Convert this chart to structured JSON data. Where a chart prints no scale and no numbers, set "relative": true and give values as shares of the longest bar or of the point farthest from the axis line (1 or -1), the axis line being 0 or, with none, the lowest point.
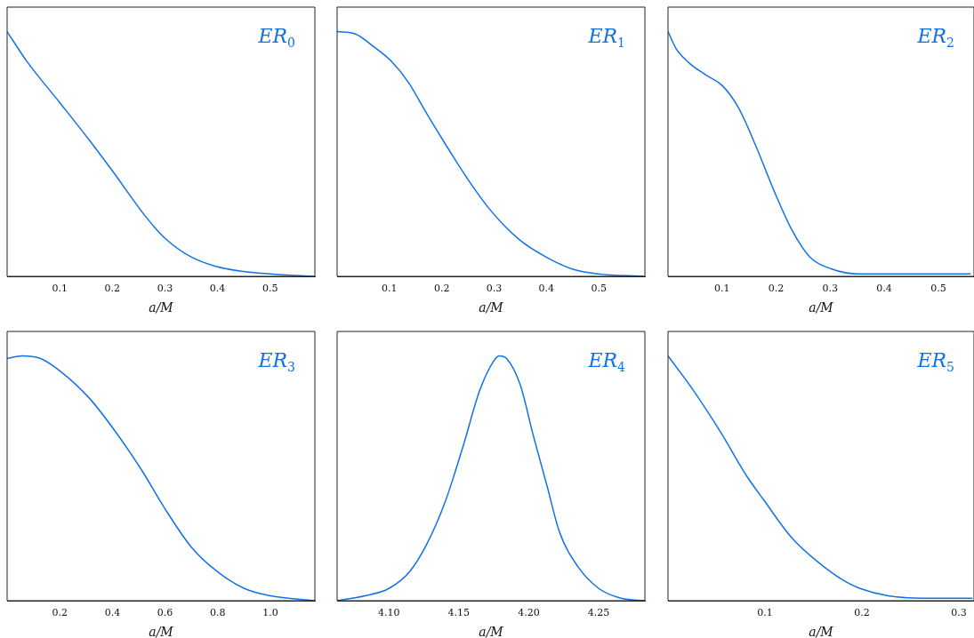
{
  "chart_data": [
    {
      "type": "line",
      "title": "ER$_{0}$",
      "xlabel": "a/M",
      "color": "#1172e6",
      "relative": true,
      "xlim": [
        0,
        0.585
      ],
      "xticks": [
        0.1,
        0.2,
        0.3,
        0.4,
        0.5
      ],
      "x": [
        0,
        0.037,
        0.1,
        0.155,
        0.197,
        0.265,
        0.298,
        0.349,
        0.398,
        0.45,
        0.5,
        0.584
      ],
      "values": [
        1,
        0.88,
        0.71,
        0.56,
        0.44,
        0.24,
        0.16,
        0.08,
        0.04,
        0.02,
        0.01,
        0
      ]
    },
    {
      "type": "line",
      "title": "ER$_{1}$",
      "xlabel": "a/M",
      "color": "#1172e6",
      "relative": true,
      "xlim": [
        0,
        0.588
      ],
      "xticks": [
        0.1,
        0.2,
        0.3,
        0.4,
        0.5
      ],
      "x": [
        0,
        0.035,
        0.069,
        0.103,
        0.137,
        0.167,
        0.204,
        0.255,
        0.297,
        0.348,
        0.398,
        0.449,
        0.498,
        0.586
      ],
      "values": [
        1,
        0.99,
        0.94,
        0.88,
        0.79,
        0.68,
        0.55,
        0.38,
        0.26,
        0.15,
        0.08,
        0.03,
        0.01,
        0
      ]
    },
    {
      "type": "line",
      "title": "ER$_{2}$",
      "xlabel": "a/M",
      "color": "#1172e6",
      "relative": true,
      "xlim": [
        0,
        0.566
      ],
      "xticks": [
        0.1,
        0.2,
        0.3,
        0.4,
        0.5
      ],
      "x": [
        0,
        0.015,
        0.04,
        0.072,
        0.1,
        0.13,
        0.163,
        0.196,
        0.229,
        0.262,
        0.303,
        0.352,
        0.41,
        0.56
      ],
      "values": [
        1,
        0.93,
        0.87,
        0.82,
        0.78,
        0.69,
        0.53,
        0.35,
        0.19,
        0.08,
        0.03,
        0.01,
        0.01,
        0.01
      ]
    },
    {
      "type": "line",
      "title": "ER$_{3}$",
      "xlabel": "a/M",
      "color": "#1172e6",
      "relative": true,
      "xlim": [
        0,
        1.169
      ],
      "xticks": [
        0.2,
        0.4,
        0.6,
        0.8,
        {
          "value": 1,
          "label": "1.0"
        }
      ],
      "x": [
        0,
        0.057,
        0.125,
        0.199,
        0.31,
        0.412,
        0.513,
        0.597,
        0.699,
        0.797,
        0.901,
        1.0,
        1.168
      ],
      "values": [
        0.99,
        1,
        0.99,
        0.94,
        0.83,
        0.69,
        0.53,
        0.38,
        0.22,
        0.12,
        0.05,
        0.02,
        0
      ]
    },
    {
      "type": "line",
      "title": "ER$_{4}$",
      "xlabel": "a/M",
      "color": "#1172e6",
      "relative": true,
      "xlim": [
        4.063,
        4.283
      ],
      "xticks": [
        {
          "value": 4.1,
          "label": "4.10"
        },
        {
          "value": 4.15,
          "label": "4.15"
        },
        {
          "value": 4.2,
          "label": "4.20"
        },
        {
          "value": 4.25,
          "label": "4.25"
        }
      ],
      "x": [
        4.063,
        4.083,
        4.1,
        4.115,
        4.127,
        4.14,
        4.153,
        4.165,
        4.175,
        4.179,
        4.184,
        4.194,
        4.203,
        4.213,
        4.222,
        4.235,
        4.25,
        4.266,
        4.283
      ],
      "values": [
        0,
        0.02,
        0.05,
        0.12,
        0.23,
        0.4,
        0.63,
        0.86,
        0.98,
        1,
        0.99,
        0.88,
        0.68,
        0.47,
        0.28,
        0.14,
        0.05,
        0.01,
        0
      ]
    },
    {
      "type": "line",
      "title": "ER$_{5}$",
      "xlabel": "a/M",
      "color": "#1172e6",
      "relative": true,
      "xlim": [
        0,
        0.3155
      ],
      "xticks": [
        0.1,
        0.2,
        0.3
      ],
      "x": [
        0,
        0.026,
        0.054,
        0.081,
        0.099,
        0.127,
        0.154,
        0.182,
        0.198,
        0.227,
        0.264,
        0.314
      ],
      "values": [
        1,
        0.86,
        0.69,
        0.51,
        0.41,
        0.26,
        0.16,
        0.08,
        0.05,
        0.02,
        0.01,
        0.01
      ]
    }
  ]
}
